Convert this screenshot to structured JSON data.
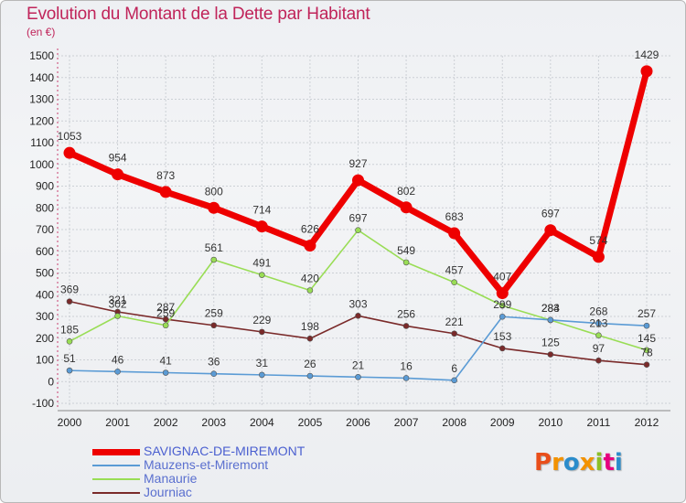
{
  "title": "Evolution du Montant de la Dette par Habitant",
  "subtitle": "(en €)",
  "logo": {
    "text": "Proxiti",
    "colors": [
      "#e94e1b",
      "#f39200",
      "#2b8ccb",
      "#f39200",
      "#8cbf26",
      "#e6007e",
      "#2b8ccb"
    ]
  },
  "chart_data": {
    "type": "line",
    "title": "Evolution du Montant de la Dette par Habitant",
    "subtitle": "(en €)",
    "x": [
      2000,
      2001,
      2002,
      2003,
      2004,
      2005,
      2006,
      2007,
      2008,
      2009,
      2010,
      2011,
      2012
    ],
    "ylim": [
      -100,
      1500
    ],
    "yticks": [
      -100,
      0,
      100,
      200,
      300,
      400,
      500,
      600,
      700,
      800,
      900,
      1000,
      1100,
      1200,
      1300,
      1400,
      1500
    ],
    "grid": true,
    "legend_position": "bottom-left",
    "series": [
      {
        "name": "SAVIGNAC-DE-MIREMONT",
        "color": "#ee0000",
        "values": [
          1053,
          954,
          873,
          800,
          714,
          626,
          927,
          802,
          683,
          407,
          697,
          574,
          1429
        ]
      },
      {
        "name": "Mauzens-et-Miremont",
        "color": "#5b9bd5",
        "values": [
          51,
          46,
          41,
          36,
          31,
          26,
          21,
          16,
          6,
          299,
          284,
          268,
          257
        ]
      },
      {
        "name": "Manaurie",
        "color": "#99dd55",
        "values": [
          185,
          302,
          259,
          561,
          491,
          420,
          697,
          549,
          457,
          350,
          283,
          213,
          145
        ]
      },
      {
        "name": "Journiac",
        "color": "#7a2a2a",
        "values": [
          369,
          321,
          287,
          259,
          229,
          198,
          303,
          256,
          221,
          153,
          125,
          97,
          78
        ]
      }
    ],
    "labels": [
      {
        "series": 0,
        "values": [
          "1053",
          "954",
          "873",
          "800",
          "714",
          "626",
          "927",
          "802",
          "683",
          "407",
          "697",
          "574",
          "1429"
        ]
      },
      {
        "series": 1,
        "values": [
          "51",
          "46",
          "41",
          "36",
          "31",
          "26",
          "21",
          "16",
          "6",
          "299",
          "284",
          "268",
          "257"
        ]
      },
      {
        "series": 2,
        "values": [
          "185",
          "302",
          "259",
          "561",
          "491",
          "420",
          "697",
          "549",
          "457",
          "",
          "283",
          "213",
          "145"
        ]
      },
      {
        "series": 3,
        "values": [
          "369",
          "321",
          "287",
          "259",
          "229",
          "198",
          "303",
          "256",
          "221",
          "153",
          "125",
          "97",
          "78"
        ]
      }
    ]
  }
}
